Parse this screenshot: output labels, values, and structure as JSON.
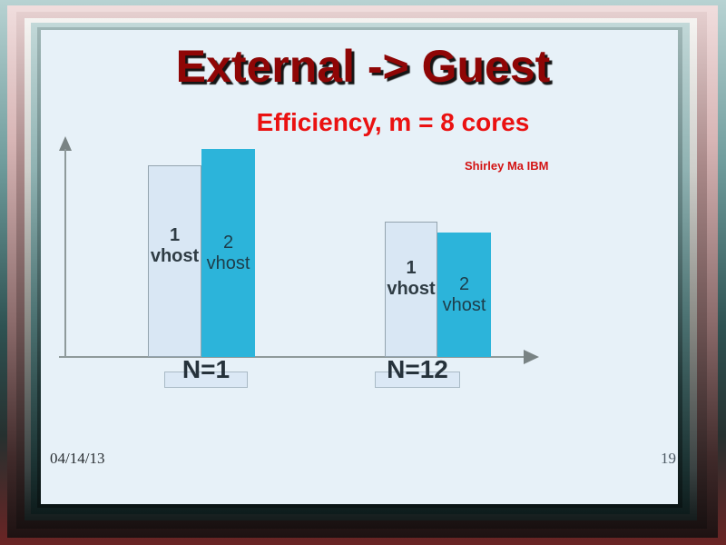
{
  "page": {
    "title": "External -> Guest",
    "author_credit": "Shirley Ma IBM"
  },
  "chart_data": {
    "type": "bar",
    "title": "Efficiency, m = 8 cores",
    "categories": [
      "N=1",
      "N=12"
    ],
    "series": [
      {
        "name": "1 vhost",
        "label_lines": [
          "1",
          "vhost"
        ],
        "values": [
          0.92,
          0.65
        ]
      },
      {
        "name": "2 vhost",
        "label_lines": [
          "2",
          "vhost"
        ],
        "values": [
          1.0,
          0.6
        ]
      }
    ],
    "value_axis_labels_shown": false,
    "values_are_relative_to_tallest_bar": true,
    "grid": false,
    "legend_position": "labels-on-bars"
  },
  "footer": {
    "date": "04/14/13",
    "page_number": "19"
  },
  "colors": {
    "slide_background": "#e7f1f8",
    "title_color": "#8f0606",
    "subtitle_color": "#ea1111",
    "bar_1vhost_fill": "#d9e7f4",
    "bar_2vhost_fill": "#2cb4da",
    "axis_color": "#8f9a9b"
  }
}
